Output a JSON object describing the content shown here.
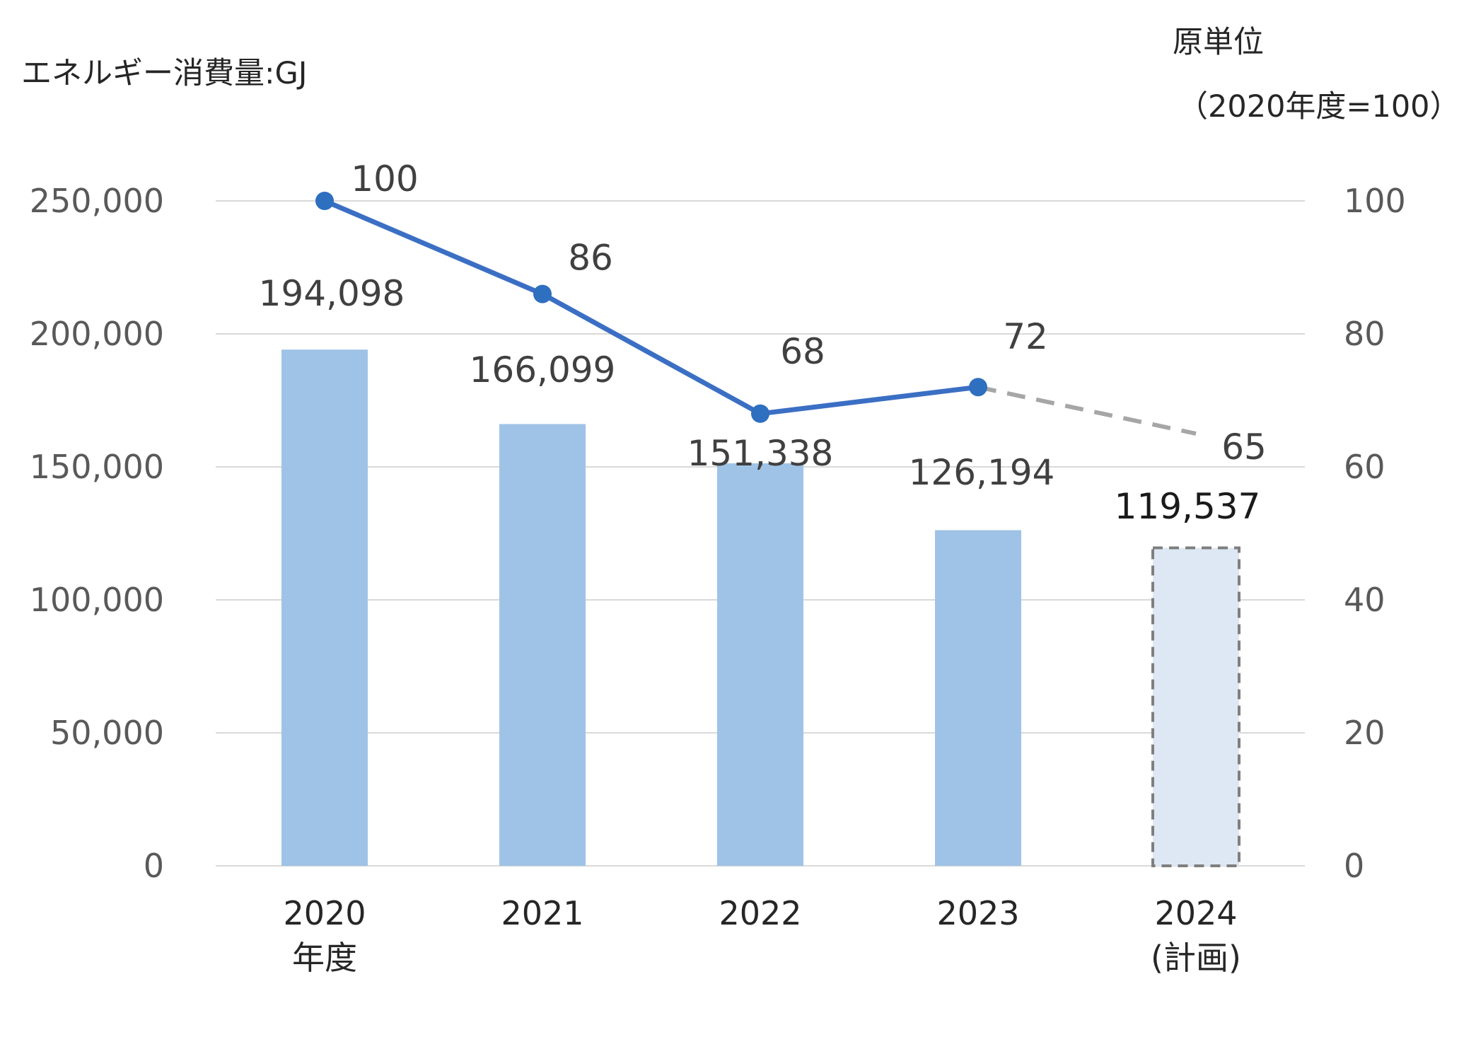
{
  "chart_data": {
    "type": "bar",
    "left_axis_title": "エネルギー消費量:GJ",
    "right_axis_title_line1": "原単位",
    "right_axis_title_line2": "（2020年度=100）",
    "categories": [
      {
        "line1": "2020",
        "line2": "年度"
      },
      {
        "line1": "2021",
        "line2": ""
      },
      {
        "line1": "2022",
        "line2": ""
      },
      {
        "line1": "2023",
        "line2": ""
      },
      {
        "line1": "2024",
        "line2": "(計画)"
      }
    ],
    "y_left": {
      "min": 0,
      "max": 250000,
      "ticks": [
        "0",
        "50,000",
        "100,000",
        "150,000",
        "200,000",
        "250,000"
      ]
    },
    "y_right": {
      "min": 0,
      "max": 100,
      "ticks": [
        "0",
        "20",
        "40",
        "60",
        "80",
        "100"
      ]
    },
    "grid": true,
    "bar_series": {
      "values": [
        194098,
        166099,
        151338,
        126194,
        119537
      ],
      "labels": [
        "194,098",
        "166,099",
        "151,338",
        "126,194",
        "119,537"
      ],
      "planned": [
        false,
        false,
        false,
        false,
        true
      ],
      "color": "#9fc3e6",
      "planned_color": "#dde8f4",
      "planned_border": "#7f7f7f"
    },
    "line_series": {
      "values": [
        100,
        86,
        68,
        72,
        65
      ],
      "labels": [
        "100",
        "86",
        "68",
        "72",
        "65"
      ],
      "color": "#3b6fc4",
      "marker_color": "#2e6fbf",
      "planned_color": "#a6a6a6"
    },
    "colors": {
      "grid": "#d9d9d9",
      "tick_text": "#595959",
      "label_text": "#404040",
      "title_text": "#262626"
    }
  }
}
